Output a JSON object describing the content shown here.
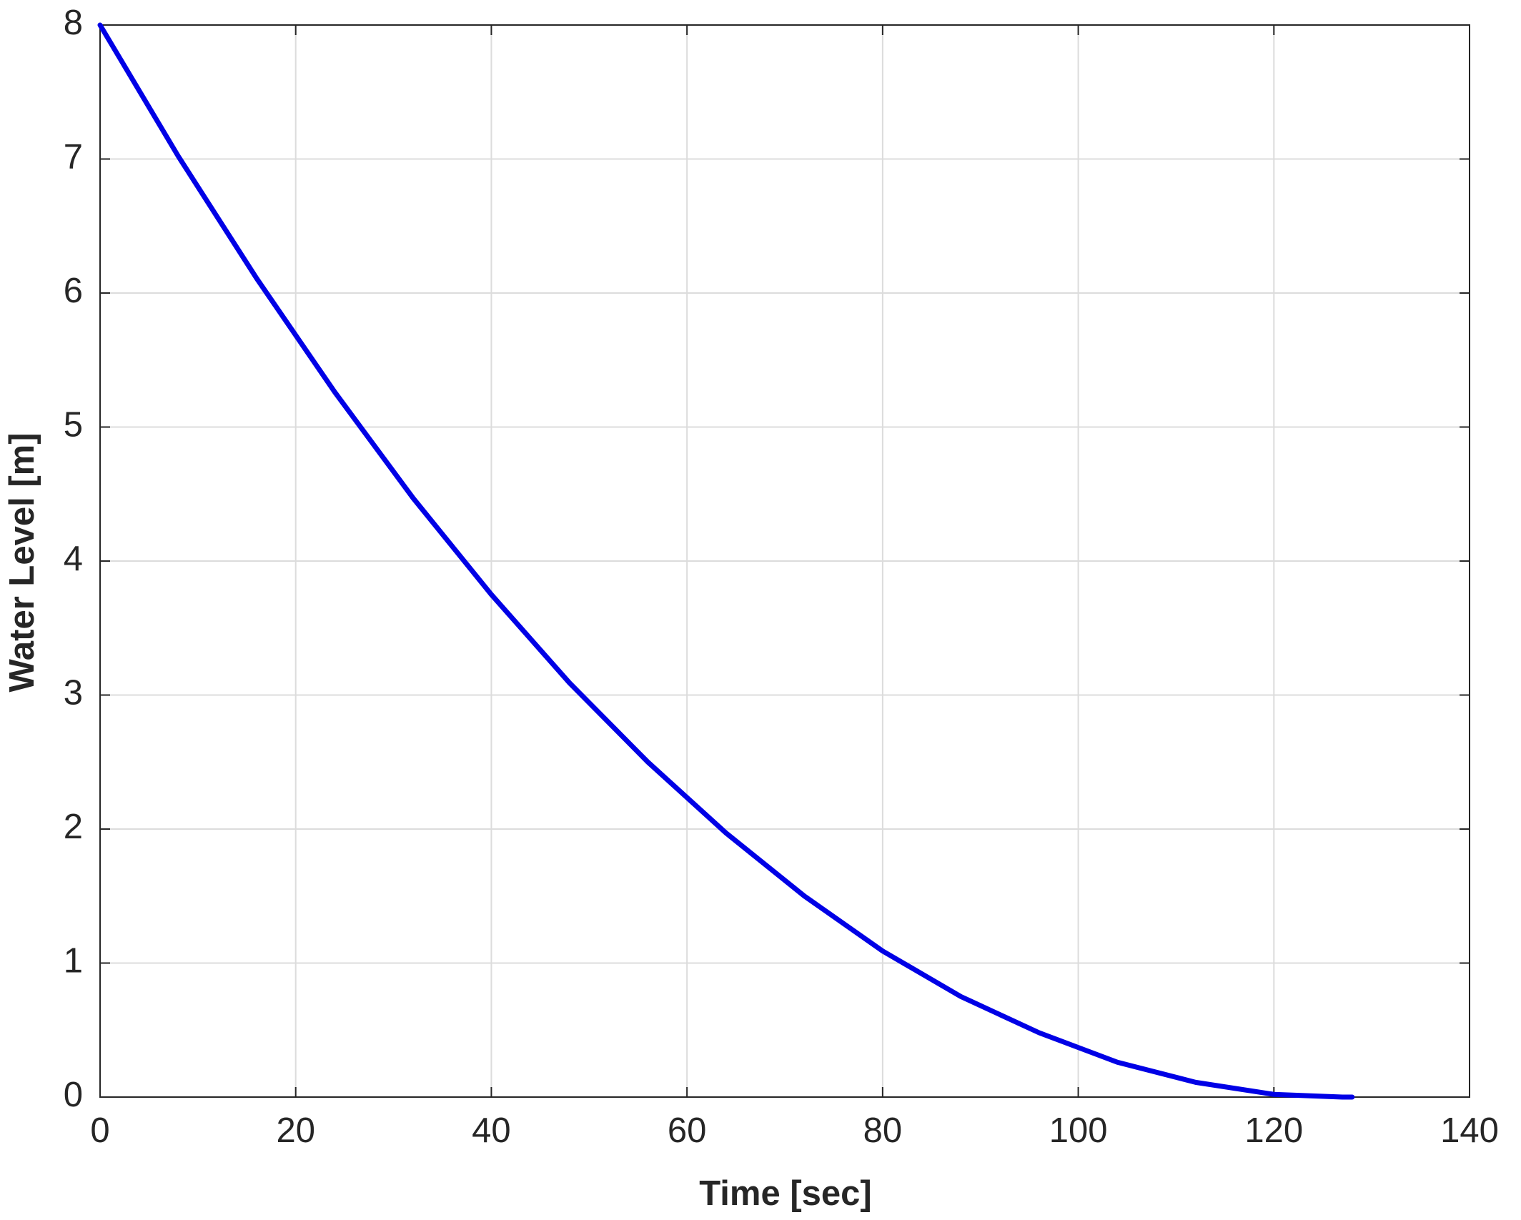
{
  "chart_data": {
    "type": "line",
    "xlabel": "Time [sec]",
    "ylabel": "Water Level [m]",
    "x": [
      0,
      8,
      16,
      24,
      32,
      40,
      48,
      56,
      64,
      72,
      80,
      88,
      96,
      104,
      112,
      120,
      127,
      128
    ],
    "series": [
      {
        "color": "#0000e6",
        "values": [
          8,
          7.02,
          6.11,
          5.26,
          4.47,
          3.75,
          3.09,
          2.5,
          1.97,
          1.5,
          1.09,
          0.75,
          0.48,
          0.26,
          0.11,
          0.02,
          0,
          0
        ]
      }
    ],
    "xlim": [
      0,
      140
    ],
    "xticks": [
      0,
      20,
      40,
      60,
      80,
      100,
      120,
      140
    ],
    "ylim": [
      0,
      8
    ],
    "yticks": [
      0,
      1,
      2,
      3,
      4,
      5,
      6,
      7,
      8
    ],
    "grid": true
  }
}
